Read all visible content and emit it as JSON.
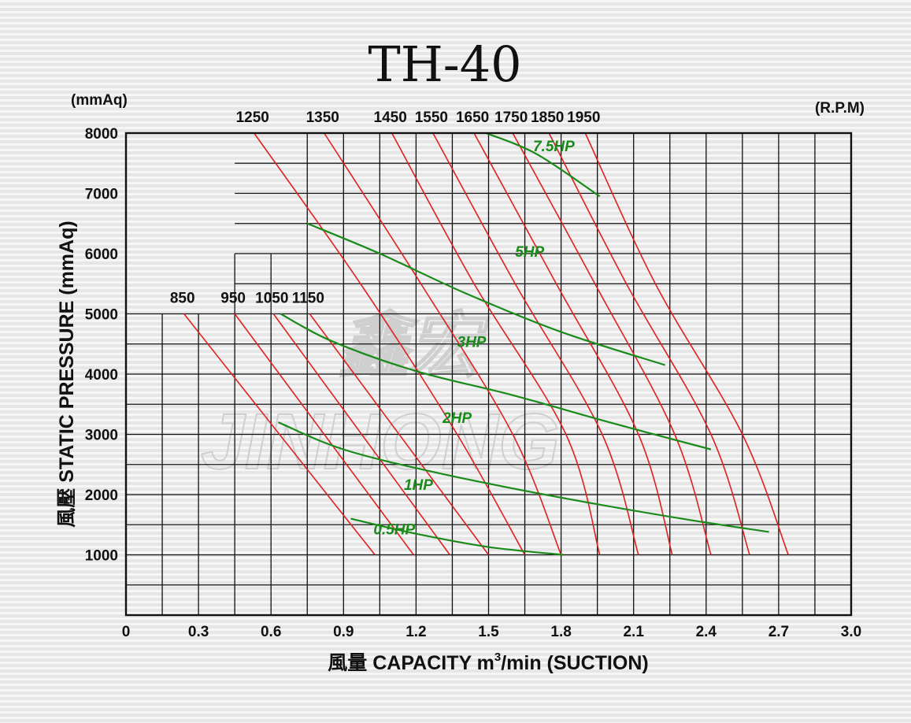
{
  "chart_data": {
    "type": "line",
    "title": "TH-40",
    "y_unit": "(mmAq)",
    "rpm_unit": "(R.P.M)",
    "ylabel": "風壓  STATIC  PRESSURE  (mmAq)",
    "xlabel_prefix": "風量  CAPACITY  m",
    "xlabel_sup": "3",
    "xlabel_suffix": "/min (SUCTION)",
    "xlim": [
      0,
      3.0
    ],
    "ylim": [
      0,
      8000
    ],
    "x_ticks": [
      "0",
      "0.3",
      "0.6",
      "0.9",
      "1.2",
      "1.5",
      "1.8",
      "2.1",
      "2.4",
      "2.7",
      "3.0"
    ],
    "y_ticks": [
      "1000",
      "2000",
      "3000",
      "4000",
      "5000",
      "6000",
      "7000",
      "8000"
    ],
    "grid": true,
    "rpm_curves": [
      {
        "rpm": "850",
        "points": [
          [
            0.24,
            5000
          ],
          [
            1.03,
            1000
          ]
        ]
      },
      {
        "rpm": "950",
        "points": [
          [
            0.45,
            5000
          ],
          [
            1.19,
            1000
          ]
        ]
      },
      {
        "rpm": "1050",
        "points": [
          [
            0.61,
            5000
          ],
          [
            1.34,
            1000
          ]
        ]
      },
      {
        "rpm": "1150",
        "points": [
          [
            0.76,
            5000
          ],
          [
            1.5,
            1000
          ]
        ]
      },
      {
        "rpm": "1250",
        "points": [
          [
            0.53,
            8000
          ],
          [
            0.97,
            5500
          ],
          [
            1.37,
            3000
          ],
          [
            1.65,
            1000
          ]
        ]
      },
      {
        "rpm": "1350",
        "points": [
          [
            0.82,
            8000
          ],
          [
            1.22,
            5500
          ],
          [
            1.6,
            3000
          ],
          [
            1.8,
            1000
          ]
        ]
      },
      {
        "rpm": "1450",
        "points": [
          [
            1.1,
            8000
          ],
          [
            1.44,
            5500
          ],
          [
            1.82,
            3000
          ],
          [
            1.96,
            1000
          ]
        ]
      },
      {
        "rpm": "1550",
        "points": [
          [
            1.27,
            8000
          ],
          [
            1.61,
            5500
          ],
          [
            1.97,
            3000
          ],
          [
            2.12,
            1000
          ]
        ]
      },
      {
        "rpm": "1650",
        "points": [
          [
            1.44,
            8000
          ],
          [
            1.78,
            5500
          ],
          [
            2.12,
            3000
          ],
          [
            2.26,
            1000
          ]
        ]
      },
      {
        "rpm": "1750",
        "points": [
          [
            1.6,
            8000
          ],
          [
            1.94,
            5500
          ],
          [
            2.27,
            3000
          ],
          [
            2.42,
            1000
          ]
        ]
      },
      {
        "rpm": "1850",
        "points": [
          [
            1.75,
            8000
          ],
          [
            2.07,
            5500
          ],
          [
            2.42,
            3000
          ],
          [
            2.58,
            1000
          ]
        ]
      },
      {
        "rpm": "1950",
        "points": [
          [
            1.9,
            8000
          ],
          [
            2.19,
            5500
          ],
          [
            2.55,
            3000
          ],
          [
            2.74,
            1000
          ]
        ]
      }
    ],
    "hp_curves": [
      {
        "label": "7.5HP",
        "label_pos": [
          1.77,
          7700
        ],
        "points": [
          [
            1.49,
            8000
          ],
          [
            1.7,
            7650
          ],
          [
            1.96,
            6950
          ]
        ]
      },
      {
        "label": "5HP",
        "label_pos": [
          1.67,
          5950
        ],
        "points": [
          [
            0.75,
            6500
          ],
          [
            1.05,
            6000
          ],
          [
            1.4,
            5350
          ],
          [
            1.8,
            4700
          ],
          [
            2.23,
            4150
          ]
        ]
      },
      {
        "label": "3HP",
        "label_pos": [
          1.43,
          4450
        ],
        "points": [
          [
            0.64,
            5000
          ],
          [
            0.85,
            4550
          ],
          [
            1.2,
            4050
          ],
          [
            1.6,
            3650
          ],
          [
            2.0,
            3200
          ],
          [
            2.42,
            2750
          ]
        ]
      },
      {
        "label": "2HP",
        "label_pos": [
          1.37,
          3190
        ],
        "points": [
          [
            0.63,
            3200
          ],
          [
            0.9,
            2750
          ],
          [
            1.3,
            2350
          ],
          [
            1.8,
            1950
          ],
          [
            2.3,
            1600
          ],
          [
            2.66,
            1380
          ]
        ]
      },
      {
        "label": "1HP",
        "label_pos": [
          1.21,
          2080
        ],
        "points": [
          [
            0.93,
            1600
          ],
          [
            1.2,
            1350
          ],
          [
            1.5,
            1130
          ],
          [
            1.81,
            1000
          ]
        ]
      },
      {
        "label": "0.5HP",
        "label_pos": [
          1.11,
          1340
        ],
        "points": []
      }
    ]
  },
  "watermark": {
    "latin": "JINHONG",
    "cjk": "鑫宏"
  }
}
